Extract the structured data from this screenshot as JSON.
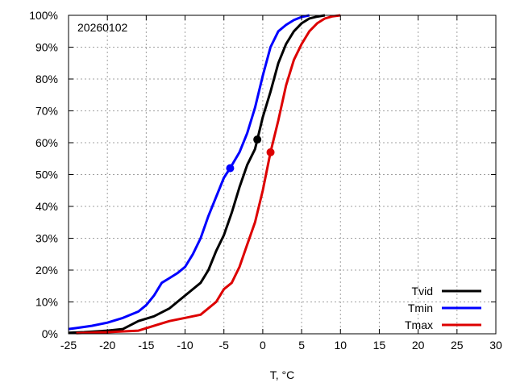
{
  "chart_data": {
    "type": "line",
    "annotation": "20260102",
    "xlabel": "T, °C",
    "ylabel": "",
    "xlim": [
      -25,
      30
    ],
    "ylim": [
      0,
      100
    ],
    "x_ticks": [
      -25,
      -20,
      -15,
      -10,
      -5,
      0,
      5,
      10,
      15,
      20,
      25,
      30
    ],
    "y_ticks": [
      0,
      10,
      20,
      30,
      40,
      50,
      60,
      70,
      80,
      90,
      100
    ],
    "y_tick_suffix": "%",
    "grid": true,
    "legend_position": "bottom-right",
    "series": [
      {
        "name": "Tvid",
        "color": "#000000",
        "marker": {
          "x": -0.7,
          "y": 61
        },
        "points": [
          [
            -26,
            0.3
          ],
          [
            -23,
            0.5
          ],
          [
            -20,
            1
          ],
          [
            -18,
            1.5
          ],
          [
            -16,
            4
          ],
          [
            -14,
            5.5
          ],
          [
            -12,
            8
          ],
          [
            -10,
            12
          ],
          [
            -8,
            16
          ],
          [
            -7,
            20
          ],
          [
            -6,
            26
          ],
          [
            -5,
            31
          ],
          [
            -4,
            38
          ],
          [
            -3,
            46
          ],
          [
            -2,
            53
          ],
          [
            -1,
            58
          ],
          [
            -0.7,
            61
          ],
          [
            0,
            68
          ],
          [
            1,
            76
          ],
          [
            2,
            85
          ],
          [
            3,
            91
          ],
          [
            4,
            95
          ],
          [
            5,
            97.5
          ],
          [
            6,
            99
          ],
          [
            7,
            99.6
          ],
          [
            8,
            100
          ]
        ]
      },
      {
        "name": "Tmin",
        "color": "#0000ff",
        "marker": {
          "x": -4.2,
          "y": 52
        },
        "points": [
          [
            -25.5,
            1.5
          ],
          [
            -24,
            1.8
          ],
          [
            -22,
            2.5
          ],
          [
            -20,
            3.5
          ],
          [
            -18,
            5
          ],
          [
            -16,
            7
          ],
          [
            -15,
            9
          ],
          [
            -14,
            12
          ],
          [
            -13,
            16
          ],
          [
            -12,
            17.5
          ],
          [
            -11,
            19
          ],
          [
            -10,
            21
          ],
          [
            -9,
            25
          ],
          [
            -8,
            30
          ],
          [
            -7,
            37
          ],
          [
            -6,
            43
          ],
          [
            -5,
            49
          ],
          [
            -4.2,
            52
          ],
          [
            -3,
            57
          ],
          [
            -2,
            63
          ],
          [
            -1,
            71
          ],
          [
            0,
            81
          ],
          [
            1,
            90
          ],
          [
            2,
            95
          ],
          [
            3,
            97
          ],
          [
            4,
            98.5
          ],
          [
            5,
            99.5
          ],
          [
            6,
            100
          ]
        ]
      },
      {
        "name": "Tmax",
        "color": "#dd0000",
        "marker": {
          "x": 1.0,
          "y": 57
        },
        "points": [
          [
            -24,
            0.2
          ],
          [
            -20,
            0.5
          ],
          [
            -16,
            1
          ],
          [
            -14,
            2.5
          ],
          [
            -12,
            4
          ],
          [
            -10,
            5
          ],
          [
            -8,
            6
          ],
          [
            -6,
            10
          ],
          [
            -5,
            14
          ],
          [
            -4,
            16
          ],
          [
            -3,
            21
          ],
          [
            -2,
            28
          ],
          [
            -1,
            35
          ],
          [
            0,
            45
          ],
          [
            1,
            57
          ],
          [
            2,
            67
          ],
          [
            3,
            78
          ],
          [
            4,
            86
          ],
          [
            5,
            91
          ],
          [
            6,
            95
          ],
          [
            7,
            97.5
          ],
          [
            8,
            99
          ],
          [
            9,
            99.7
          ],
          [
            10,
            100
          ]
        ]
      }
    ]
  }
}
